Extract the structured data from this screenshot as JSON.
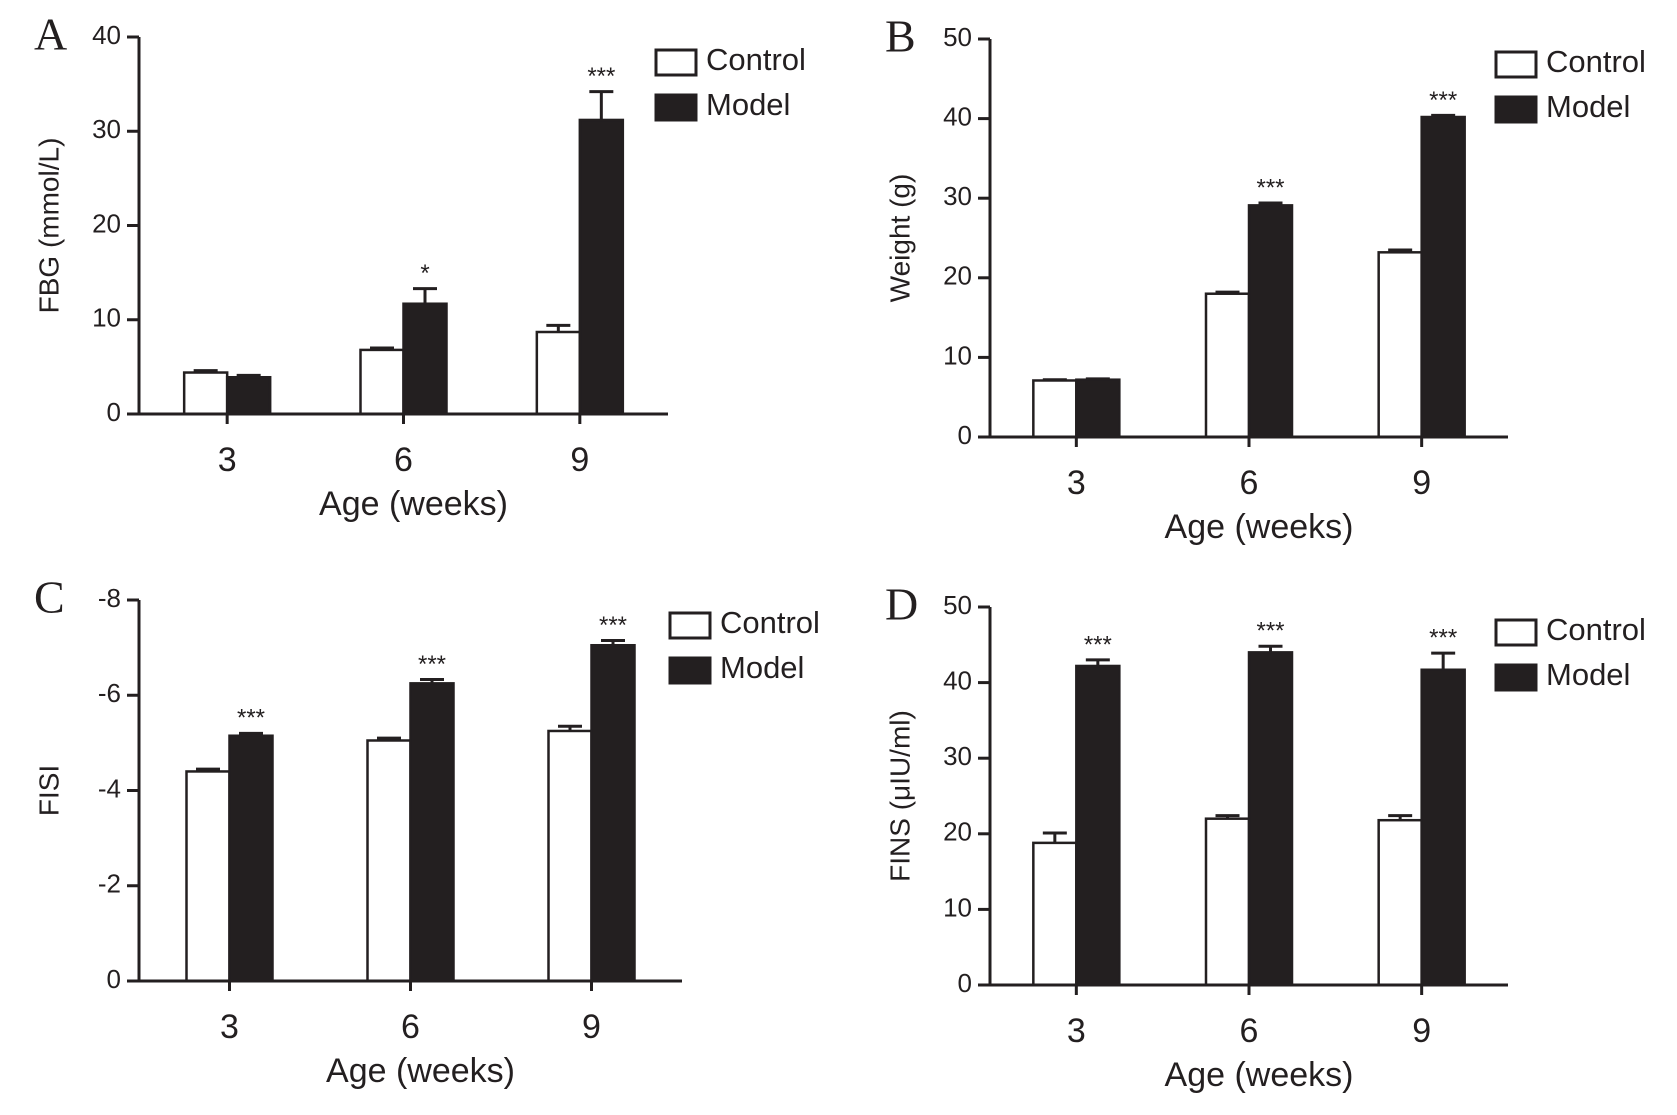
{
  "chart_data": [
    {
      "type": "bar",
      "panel_label": "A",
      "ylabel": "FBG (mmol/L)",
      "xlabel": "Age (weeks)",
      "categories": [
        "3",
        "6",
        "9"
      ],
      "series": [
        {
          "name": "Control",
          "color": "#ffffff",
          "values": [
            4.4,
            6.8,
            8.7
          ],
          "errors": [
            0.2,
            0.2,
            0.7
          ]
        },
        {
          "name": "Model",
          "color": "#231f20",
          "values": [
            3.9,
            11.7,
            31.2
          ],
          "errors": [
            0.2,
            1.6,
            3.0
          ]
        }
      ],
      "annotations": [
        null,
        "*",
        "***"
      ],
      "ylim": [
        0,
        40
      ],
      "yticks": [
        0,
        10,
        20,
        30,
        40
      ],
      "legend": "upper right"
    },
    {
      "type": "bar",
      "panel_label": "B",
      "ylabel": "Weight (g)",
      "xlabel": "Age (weeks)",
      "categories": [
        "3",
        "6",
        "9"
      ],
      "series": [
        {
          "name": "Control",
          "color": "#ffffff",
          "values": [
            7.1,
            18,
            23.2
          ],
          "errors": [
            0.1,
            0.2,
            0.3
          ]
        },
        {
          "name": "Model",
          "color": "#231f20",
          "values": [
            7.2,
            29.1,
            40.2
          ],
          "errors": [
            0.1,
            0.3,
            0.2
          ]
        }
      ],
      "annotations": [
        null,
        "***",
        "***"
      ],
      "ylim": [
        0,
        50
      ],
      "yticks": [
        0,
        10,
        20,
        30,
        40,
        50
      ],
      "legend": "upper right"
    },
    {
      "type": "bar",
      "panel_label": "C",
      "ylabel": "FISI",
      "xlabel": "Age (weeks)",
      "categories": [
        "3",
        "6",
        "9"
      ],
      "series": [
        {
          "name": "Control",
          "color": "#ffffff",
          "values": [
            -4.4,
            -5.05,
            -5.25
          ],
          "errors": [
            0.05,
            0.05,
            0.1
          ]
        },
        {
          "name": "Model",
          "color": "#231f20",
          "values": [
            -5.15,
            -6.25,
            -7.05
          ],
          "errors": [
            0.05,
            0.08,
            0.1
          ]
        }
      ],
      "annotations": [
        "***",
        "***",
        "***"
      ],
      "ylim": [
        0,
        -8
      ],
      "yticks": [
        0,
        -2,
        -4,
        -6,
        -8
      ],
      "legend": "upper right"
    },
    {
      "type": "bar",
      "panel_label": "D",
      "ylabel": "FINS (μIU/ml)",
      "xlabel": "Age (weeks)",
      "categories": [
        "3",
        "6",
        "9"
      ],
      "series": [
        {
          "name": "Control",
          "color": "#ffffff",
          "values": [
            18.8,
            22,
            21.8
          ],
          "errors": [
            1.3,
            0.4,
            0.6
          ]
        },
        {
          "name": "Model",
          "color": "#231f20",
          "values": [
            42.2,
            44,
            41.7
          ],
          "errors": [
            0.8,
            0.8,
            2.2
          ]
        }
      ],
      "annotations": [
        "***",
        "***",
        "***"
      ],
      "ylim": [
        0,
        50
      ],
      "yticks": [
        0,
        10,
        20,
        30,
        40,
        50
      ],
      "legend": "upper right"
    }
  ]
}
